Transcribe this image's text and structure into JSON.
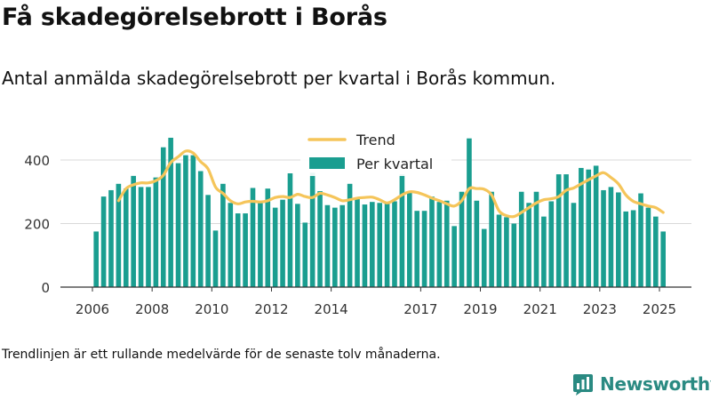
{
  "title": "Få skadegörelsebrott i Borås",
  "subtitle": "Antal anmälda skadegörelsebrott per kvartal i Borås kommun.",
  "footnote": "Trendlinjen är ett rullande medelvärde för de senaste tolv månaderna.",
  "brand": {
    "name": "Newsworthy",
    "color": "#2a8a82"
  },
  "colors": {
    "bar": "#1a9e90",
    "trend": "#f5c55a",
    "grid": "#d9d9d9",
    "axis": "#333333"
  },
  "chart_data": {
    "type": "bar",
    "ylim": [
      0,
      460
    ],
    "yticks": [
      0,
      200,
      400
    ],
    "grid": true,
    "legend_position": "top-center",
    "x_tick_labels": [
      "2006",
      "2008",
      "2010",
      "2012",
      "2014",
      "2017",
      "2019",
      "2021",
      "2023",
      "2025"
    ],
    "x_tick_years": [
      2006,
      2008,
      2010,
      2012,
      2014,
      2017,
      2019,
      2021,
      2023,
      2025
    ],
    "series": [
      {
        "name": "Per kvartal",
        "type": "bar",
        "x": [
          "2006 Q1",
          "2006 Q2",
          "2006 Q3",
          "2006 Q4",
          "2007 Q1",
          "2007 Q2",
          "2007 Q3",
          "2007 Q4",
          "2008 Q1",
          "2008 Q2",
          "2008 Q3",
          "2008 Q4",
          "2009 Q1",
          "2009 Q2",
          "2009 Q3",
          "2009 Q4",
          "2010 Q1",
          "2010 Q2",
          "2010 Q3",
          "2010 Q4",
          "2011 Q1",
          "2011 Q2",
          "2011 Q3",
          "2011 Q4",
          "2012 Q1",
          "2012 Q2",
          "2012 Q3",
          "2012 Q4",
          "2013 Q1",
          "2013 Q2",
          "2013 Q3",
          "2013 Q4",
          "2014 Q1",
          "2014 Q2",
          "2014 Q3",
          "2014 Q4",
          "2015 Q1",
          "2015 Q2",
          "2015 Q3",
          "2015 Q4",
          "2016 Q1",
          "2016 Q2",
          "2016 Q3",
          "2016 Q4",
          "2017 Q1",
          "2017 Q2",
          "2017 Q3",
          "2017 Q4",
          "2018 Q1",
          "2018 Q2",
          "2018 Q3",
          "2018 Q4",
          "2019 Q1",
          "2019 Q2",
          "2019 Q3",
          "2019 Q4",
          "2020 Q1",
          "2020 Q2",
          "2020 Q3",
          "2020 Q4",
          "2021 Q1",
          "2021 Q2",
          "2021 Q3",
          "2021 Q4",
          "2022 Q1",
          "2022 Q2",
          "2022 Q3",
          "2022 Q4",
          "2023 Q1",
          "2023 Q2",
          "2023 Q3",
          "2023 Q4",
          "2024 Q1",
          "2024 Q2",
          "2024 Q3",
          "2024 Q4",
          "2025 Q1"
        ],
        "values": [
          175,
          285,
          305,
          325,
          310,
          350,
          315,
          315,
          345,
          440,
          470,
          390,
          415,
          415,
          365,
          290,
          178,
          325,
          265,
          232,
          232,
          312,
          265,
          310,
          250,
          275,
          358,
          262,
          203,
          360,
          302,
          258,
          250,
          258,
          325,
          280,
          260,
          268,
          265,
          268,
          270,
          355,
          298,
          240,
          240,
          285,
          268,
          272,
          192,
          300,
          468,
          272,
          183,
          300,
          228,
          220,
          200,
          300,
          265,
          300,
          222,
          270,
          355,
          355,
          265,
          375,
          370,
          382,
          305,
          315,
          298,
          238,
          242,
          295,
          250,
          222,
          175
        ]
      },
      {
        "name": "Trend",
        "type": "line",
        "x": [
          "2006 Q4",
          "2007 Q1",
          "2007 Q2",
          "2007 Q3",
          "2007 Q4",
          "2008 Q1",
          "2008 Q2",
          "2008 Q3",
          "2008 Q4",
          "2009 Q1",
          "2009 Q2",
          "2009 Q3",
          "2009 Q4",
          "2010 Q1",
          "2010 Q2",
          "2010 Q3",
          "2010 Q4",
          "2011 Q1",
          "2011 Q2",
          "2011 Q3",
          "2011 Q4",
          "2012 Q1",
          "2012 Q2",
          "2012 Q3",
          "2012 Q4",
          "2013 Q1",
          "2013 Q2",
          "2013 Q3",
          "2013 Q4",
          "2014 Q1",
          "2014 Q2",
          "2014 Q3",
          "2014 Q4",
          "2015 Q1",
          "2015 Q2",
          "2015 Q3",
          "2015 Q4",
          "2016 Q1",
          "2016 Q2",
          "2016 Q3",
          "2016 Q4",
          "2017 Q1",
          "2017 Q2",
          "2017 Q3",
          "2017 Q4",
          "2018 Q1",
          "2018 Q2",
          "2018 Q3",
          "2018 Q4",
          "2019 Q1",
          "2019 Q2",
          "2019 Q3",
          "2019 Q4",
          "2020 Q1",
          "2020 Q2",
          "2020 Q3",
          "2020 Q4",
          "2021 Q1",
          "2021 Q2",
          "2021 Q3",
          "2021 Q4",
          "2022 Q1",
          "2022 Q2",
          "2022 Q3",
          "2022 Q4",
          "2023 Q1",
          "2023 Q2",
          "2023 Q3",
          "2023 Q4",
          "2024 Q1",
          "2024 Q2",
          "2024 Q3",
          "2024 Q4",
          "2025 Q1"
        ],
        "values": [
          272,
          310,
          322,
          328,
          328,
          335,
          352,
          392,
          410,
          428,
          422,
          395,
          372,
          315,
          295,
          272,
          262,
          268,
          270,
          268,
          272,
          282,
          285,
          282,
          292,
          285,
          282,
          295,
          290,
          282,
          272,
          275,
          280,
          282,
          283,
          275,
          265,
          275,
          290,
          300,
          298,
          290,
          280,
          272,
          262,
          255,
          272,
          310,
          310,
          308,
          290,
          240,
          225,
          222,
          235,
          250,
          265,
          275,
          278,
          285,
          305,
          312,
          325,
          338,
          350,
          360,
          345,
          325,
          290,
          270,
          262,
          255,
          250,
          235
        ]
      }
    ]
  }
}
